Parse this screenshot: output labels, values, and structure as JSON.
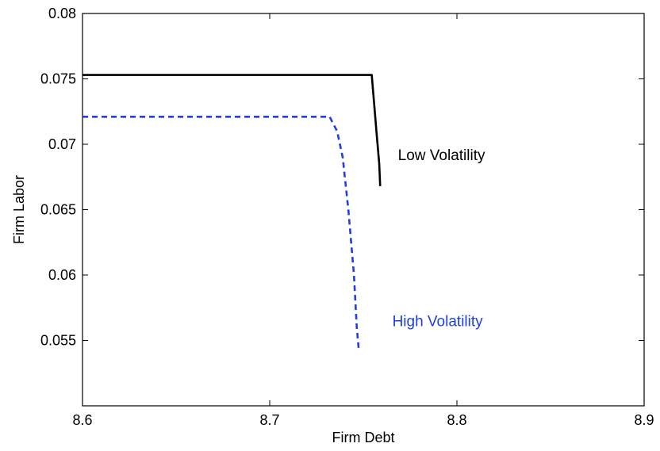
{
  "chart_data": {
    "type": "line",
    "title": "",
    "xlabel": "Firm Debt",
    "ylabel": "Firm Labor",
    "xlim": [
      8.6,
      8.9
    ],
    "ylim": [
      0.05,
      0.08
    ],
    "xticks": [
      8.6,
      8.7,
      8.8,
      8.9
    ],
    "xtick_labels": [
      "8.6",
      "8.7",
      "8.8",
      "8.9"
    ],
    "yticks": [
      0.055,
      0.06,
      0.065,
      0.07,
      0.075,
      0.08
    ],
    "ytick_labels": [
      "0.055",
      "0.06",
      "0.065",
      "0.07",
      "0.075",
      "0.08"
    ],
    "grid": false,
    "legend": "none",
    "series": [
      {
        "name": "Low Volatility",
        "color": "#000000",
        "style": "solid",
        "x": [
          8.6,
          8.65,
          8.7,
          8.72,
          8.74,
          8.7545,
          8.757,
          8.7585,
          8.759
        ],
        "y": [
          0.0753,
          0.0753,
          0.0753,
          0.0753,
          0.0753,
          0.0753,
          0.071,
          0.0685,
          0.0668
        ]
      },
      {
        "name": "High Volatility",
        "color": "#1f3fe0",
        "style": "dashed",
        "x": [
          8.6,
          8.65,
          8.7,
          8.72,
          8.732,
          8.736,
          8.739,
          8.742,
          8.745,
          8.7465,
          8.7475
        ],
        "y": [
          0.0721,
          0.0721,
          0.0721,
          0.0721,
          0.0721,
          0.071,
          0.069,
          0.065,
          0.06,
          0.056,
          0.0544
        ]
      }
    ],
    "annotations": [
      {
        "text": "Low Volatility",
        "x": 8.7685,
        "y": 0.0688,
        "color": "#000000"
      },
      {
        "text": "High Volatility",
        "x": 8.7655,
        "y": 0.0561,
        "color": "#1f3fe0"
      }
    ]
  }
}
